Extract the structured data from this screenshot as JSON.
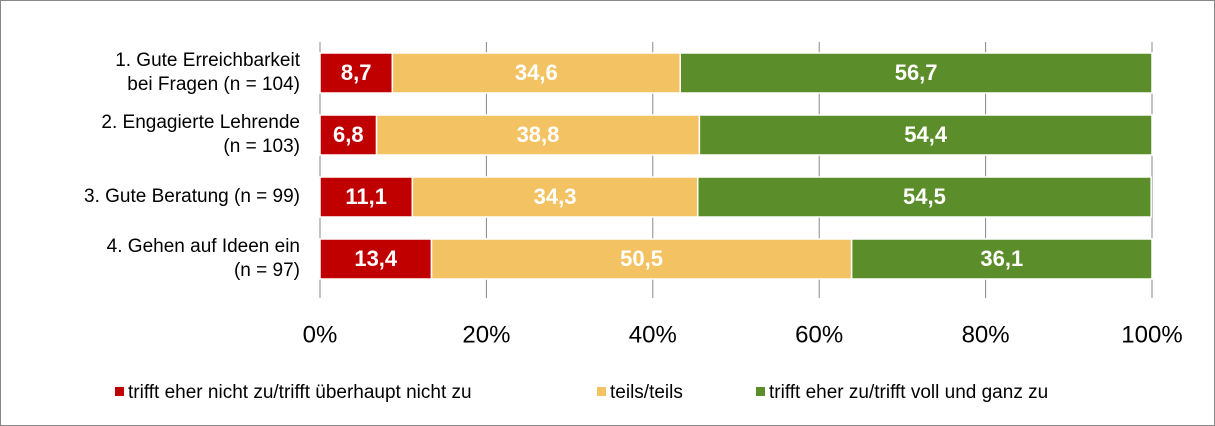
{
  "chart_data": {
    "type": "stacked-bar-horizontal",
    "categories": [
      "1. Gute Erreichbarkeit\nbei Fragen (n = 104)",
      "2. Engagierte Lehrende\n(n = 103)",
      "3. Gute Beratung (n = 99)",
      "4. Gehen auf Ideen ein\n(n = 97)"
    ],
    "series": [
      {
        "name": "trifft eher nicht zu/trifft überhaupt nicht zu",
        "color": "#c00000",
        "values": [
          8.7,
          6.8,
          11.1,
          13.4
        ],
        "value_labels": [
          "8,7",
          "6,8",
          "11,1",
          "13,4"
        ]
      },
      {
        "name": "teils/teils",
        "color": "#f3c363",
        "values": [
          34.6,
          38.8,
          34.3,
          50.5
        ],
        "value_labels": [
          "34,6",
          "38,8",
          "34,3",
          "50,5"
        ]
      },
      {
        "name": "trifft eher zu/trifft voll und ganz zu",
        "color": "#5b8e2a",
        "values": [
          56.7,
          54.4,
          54.5,
          36.1
        ],
        "value_labels": [
          "56,7",
          "54,4",
          "54,5",
          "36,1"
        ]
      }
    ],
    "xlim": [
      0,
      100
    ],
    "xticks": [
      {
        "value": 0,
        "label": "0%"
      },
      {
        "value": 20,
        "label": "20%"
      },
      {
        "value": 40,
        "label": "40%"
      },
      {
        "value": 60,
        "label": "60%"
      },
      {
        "value": 80,
        "label": "80%"
      },
      {
        "value": 100,
        "label": "100%"
      }
    ],
    "grid": true,
    "legend": "bottom"
  }
}
